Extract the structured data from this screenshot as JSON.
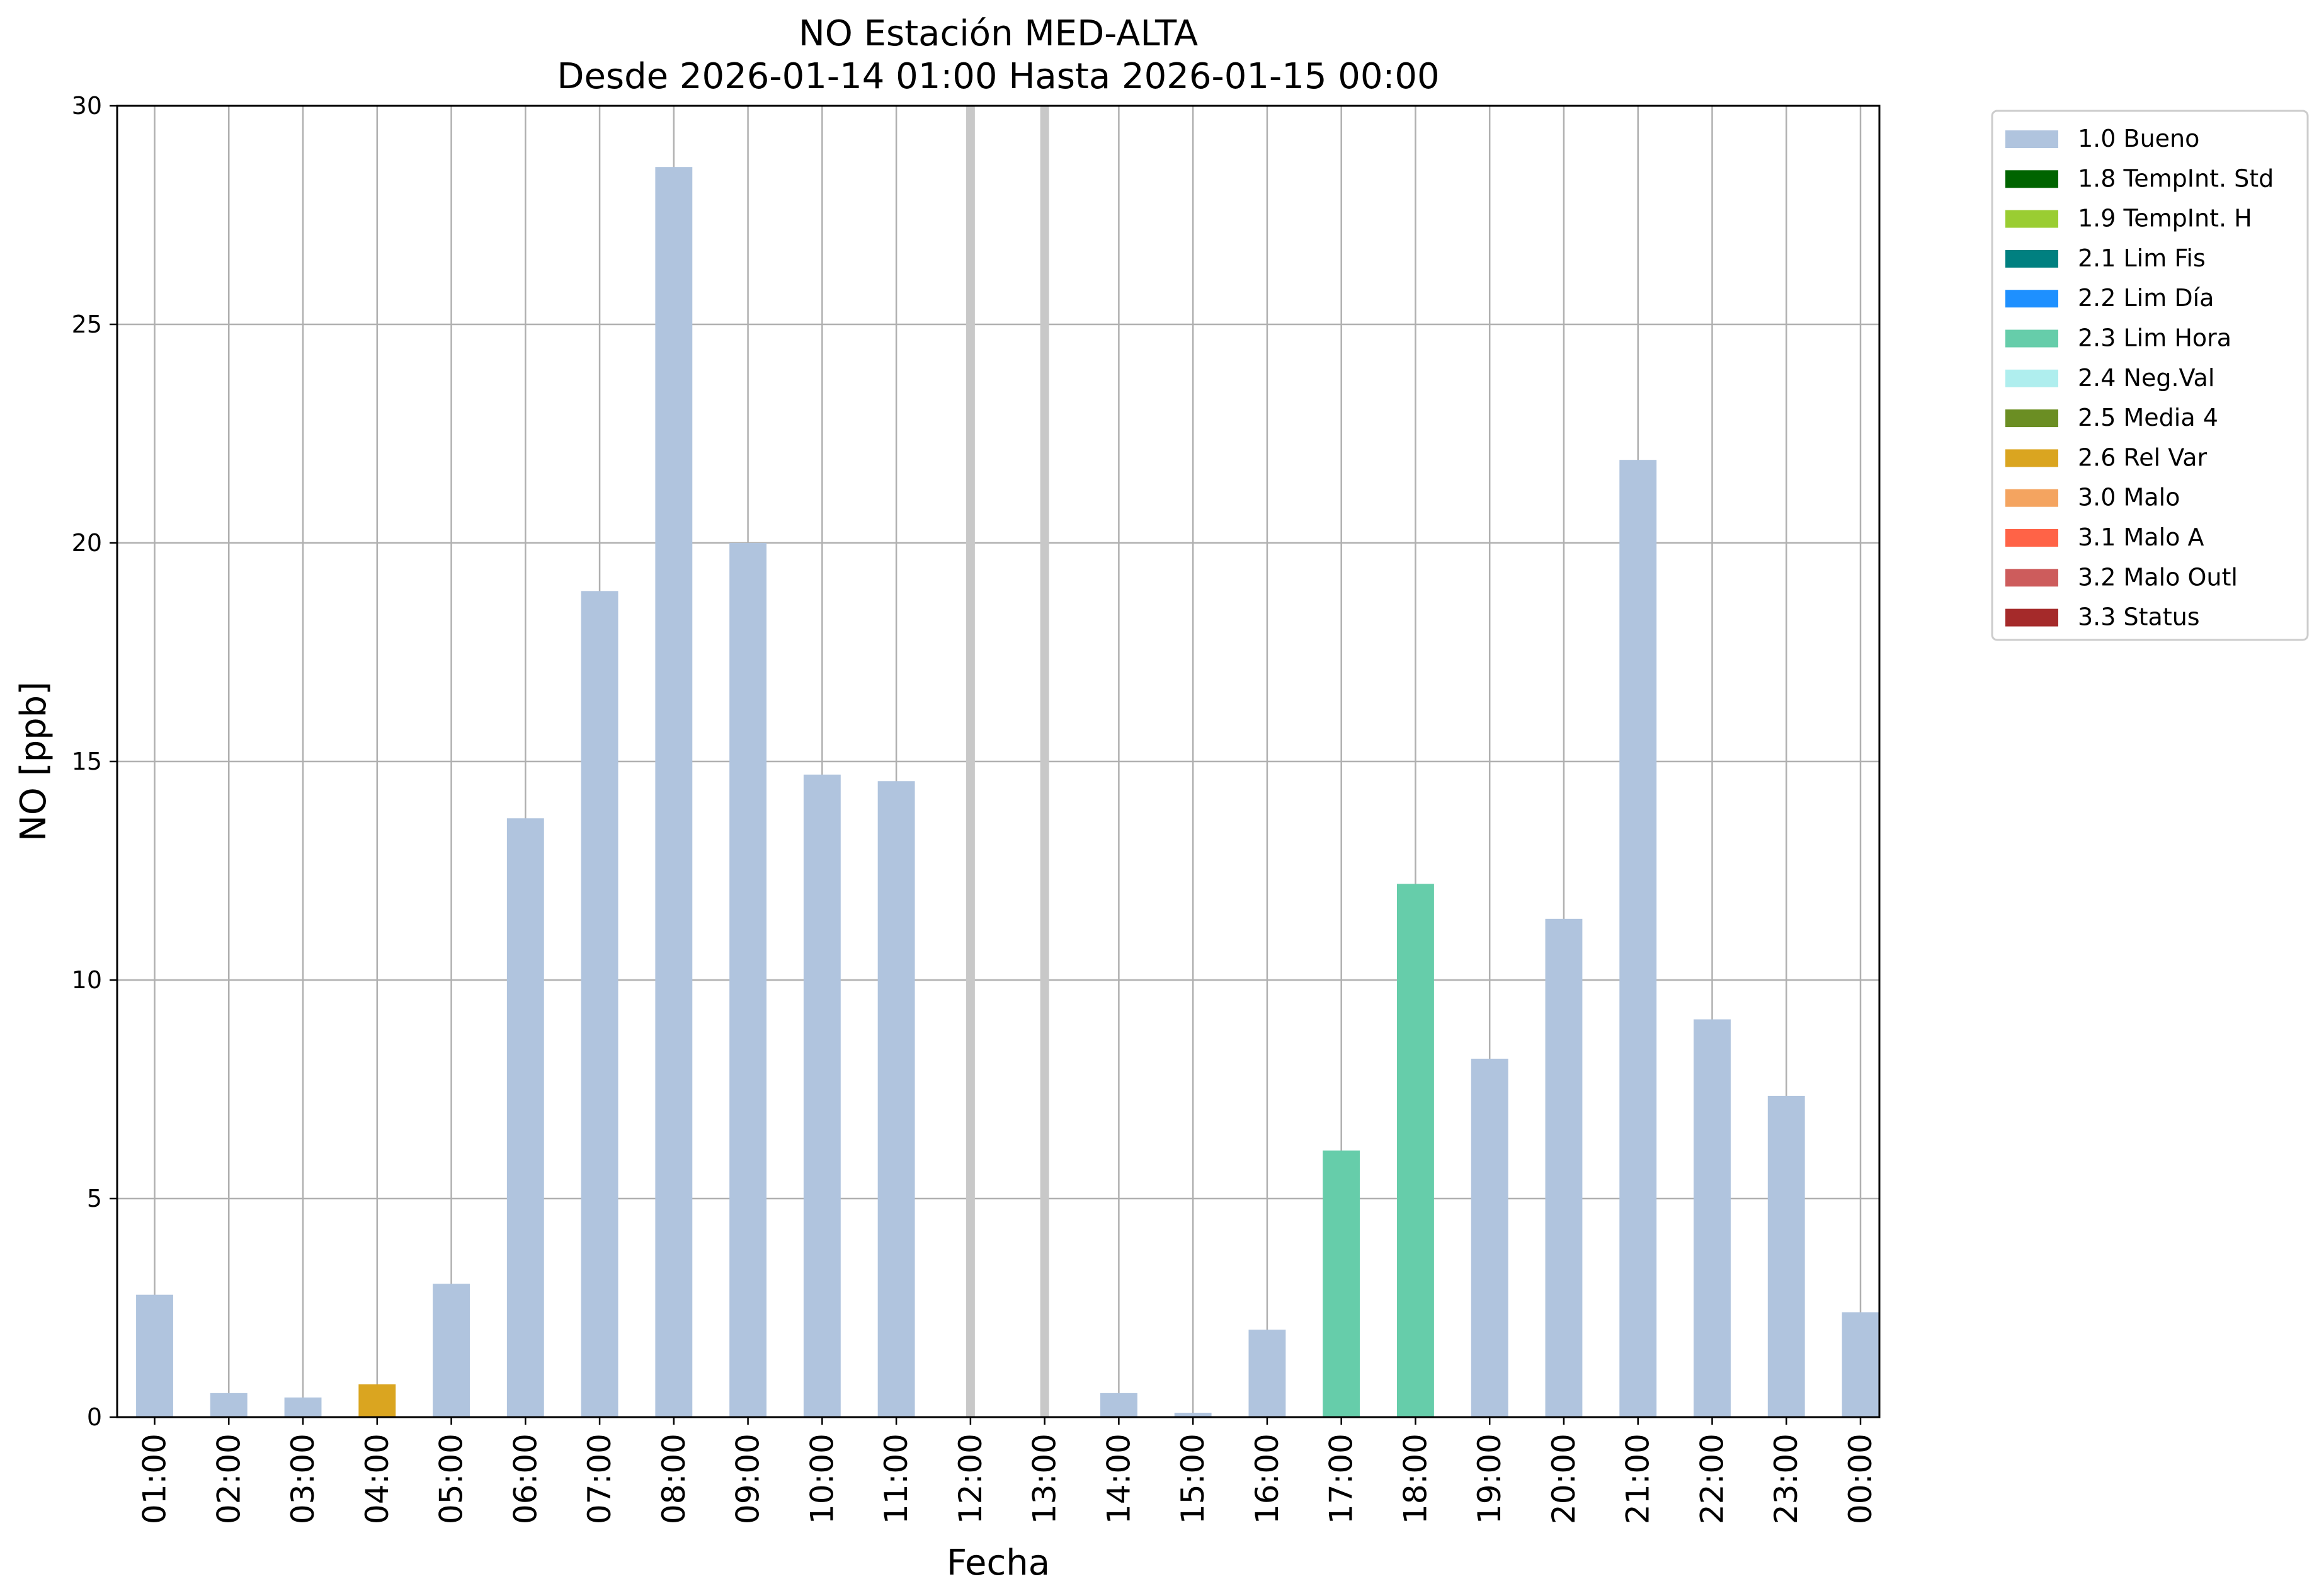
{
  "chart_data": {
    "type": "bar",
    "title": "NO Estación MED-ALTA",
    "subtitle": "Desde 2026-01-14 01:00 Hasta 2026-01-15 00:00",
    "xlabel": "Fecha",
    "ylabel": "NO [ppb]",
    "ylim": [
      0,
      30
    ],
    "yticks": [
      0,
      5,
      10,
      15,
      20,
      25,
      30
    ],
    "grid": true,
    "legend_position": "outside-top-right",
    "categories": [
      "01:00",
      "02:00",
      "03:00",
      "04:00",
      "05:00",
      "06:00",
      "07:00",
      "08:00",
      "09:00",
      "10:00",
      "11:00",
      "12:00",
      "13:00",
      "14:00",
      "15:00",
      "16:00",
      "17:00",
      "18:00",
      "19:00",
      "20:00",
      "21:00",
      "22:00",
      "23:00",
      "00:00"
    ],
    "values": [
      2.8,
      0.55,
      0.45,
      0.75,
      3.05,
      13.7,
      18.9,
      28.6,
      20.0,
      14.7,
      14.55,
      null,
      null,
      0.55,
      0.1,
      2.0,
      6.1,
      12.2,
      8.2,
      11.4,
      21.9,
      9.1,
      7.35,
      2.4
    ],
    "flags": [
      "1.0",
      "1.0",
      "1.0",
      "2.6",
      "1.0",
      "1.0",
      "1.0",
      "1.0",
      "1.0",
      "1.0",
      "1.0",
      null,
      null,
      "1.0",
      "1.0",
      "1.0",
      "2.3",
      "2.3",
      "1.0",
      "1.0",
      "1.0",
      "1.0",
      "1.0",
      "1.0"
    ],
    "missing_marker_color": "#c8c8c8",
    "legend": [
      {
        "code": "1.0",
        "label": "1.0 Bueno",
        "color": "#b0c4de"
      },
      {
        "code": "1.8",
        "label": "1.8 TempInt. Std",
        "color": "#006400"
      },
      {
        "code": "1.9",
        "label": "1.9 TempInt. H",
        "color": "#9acd32"
      },
      {
        "code": "2.1",
        "label": "2.1 Lim Fis",
        "color": "#008080"
      },
      {
        "code": "2.2",
        "label": "2.2 Lim Día",
        "color": "#1e90ff"
      },
      {
        "code": "2.3",
        "label": "2.3 Lim Hora",
        "color": "#66cdaa"
      },
      {
        "code": "2.4",
        "label": "2.4 Neg.Val",
        "color": "#afeeee"
      },
      {
        "code": "2.5",
        "label": "2.5 Media 4",
        "color": "#6b8e23"
      },
      {
        "code": "2.6",
        "label": "2.6 Rel Var",
        "color": "#daa520"
      },
      {
        "code": "3.0",
        "label": "3.0 Malo",
        "color": "#f4a460"
      },
      {
        "code": "3.1",
        "label": "3.1 Malo A",
        "color": "#ff6347"
      },
      {
        "code": "3.2",
        "label": "3.2 Malo Outl",
        "color": "#cd5c5c"
      },
      {
        "code": "3.3",
        "label": "3.3 Status",
        "color": "#a52a2a"
      }
    ]
  }
}
